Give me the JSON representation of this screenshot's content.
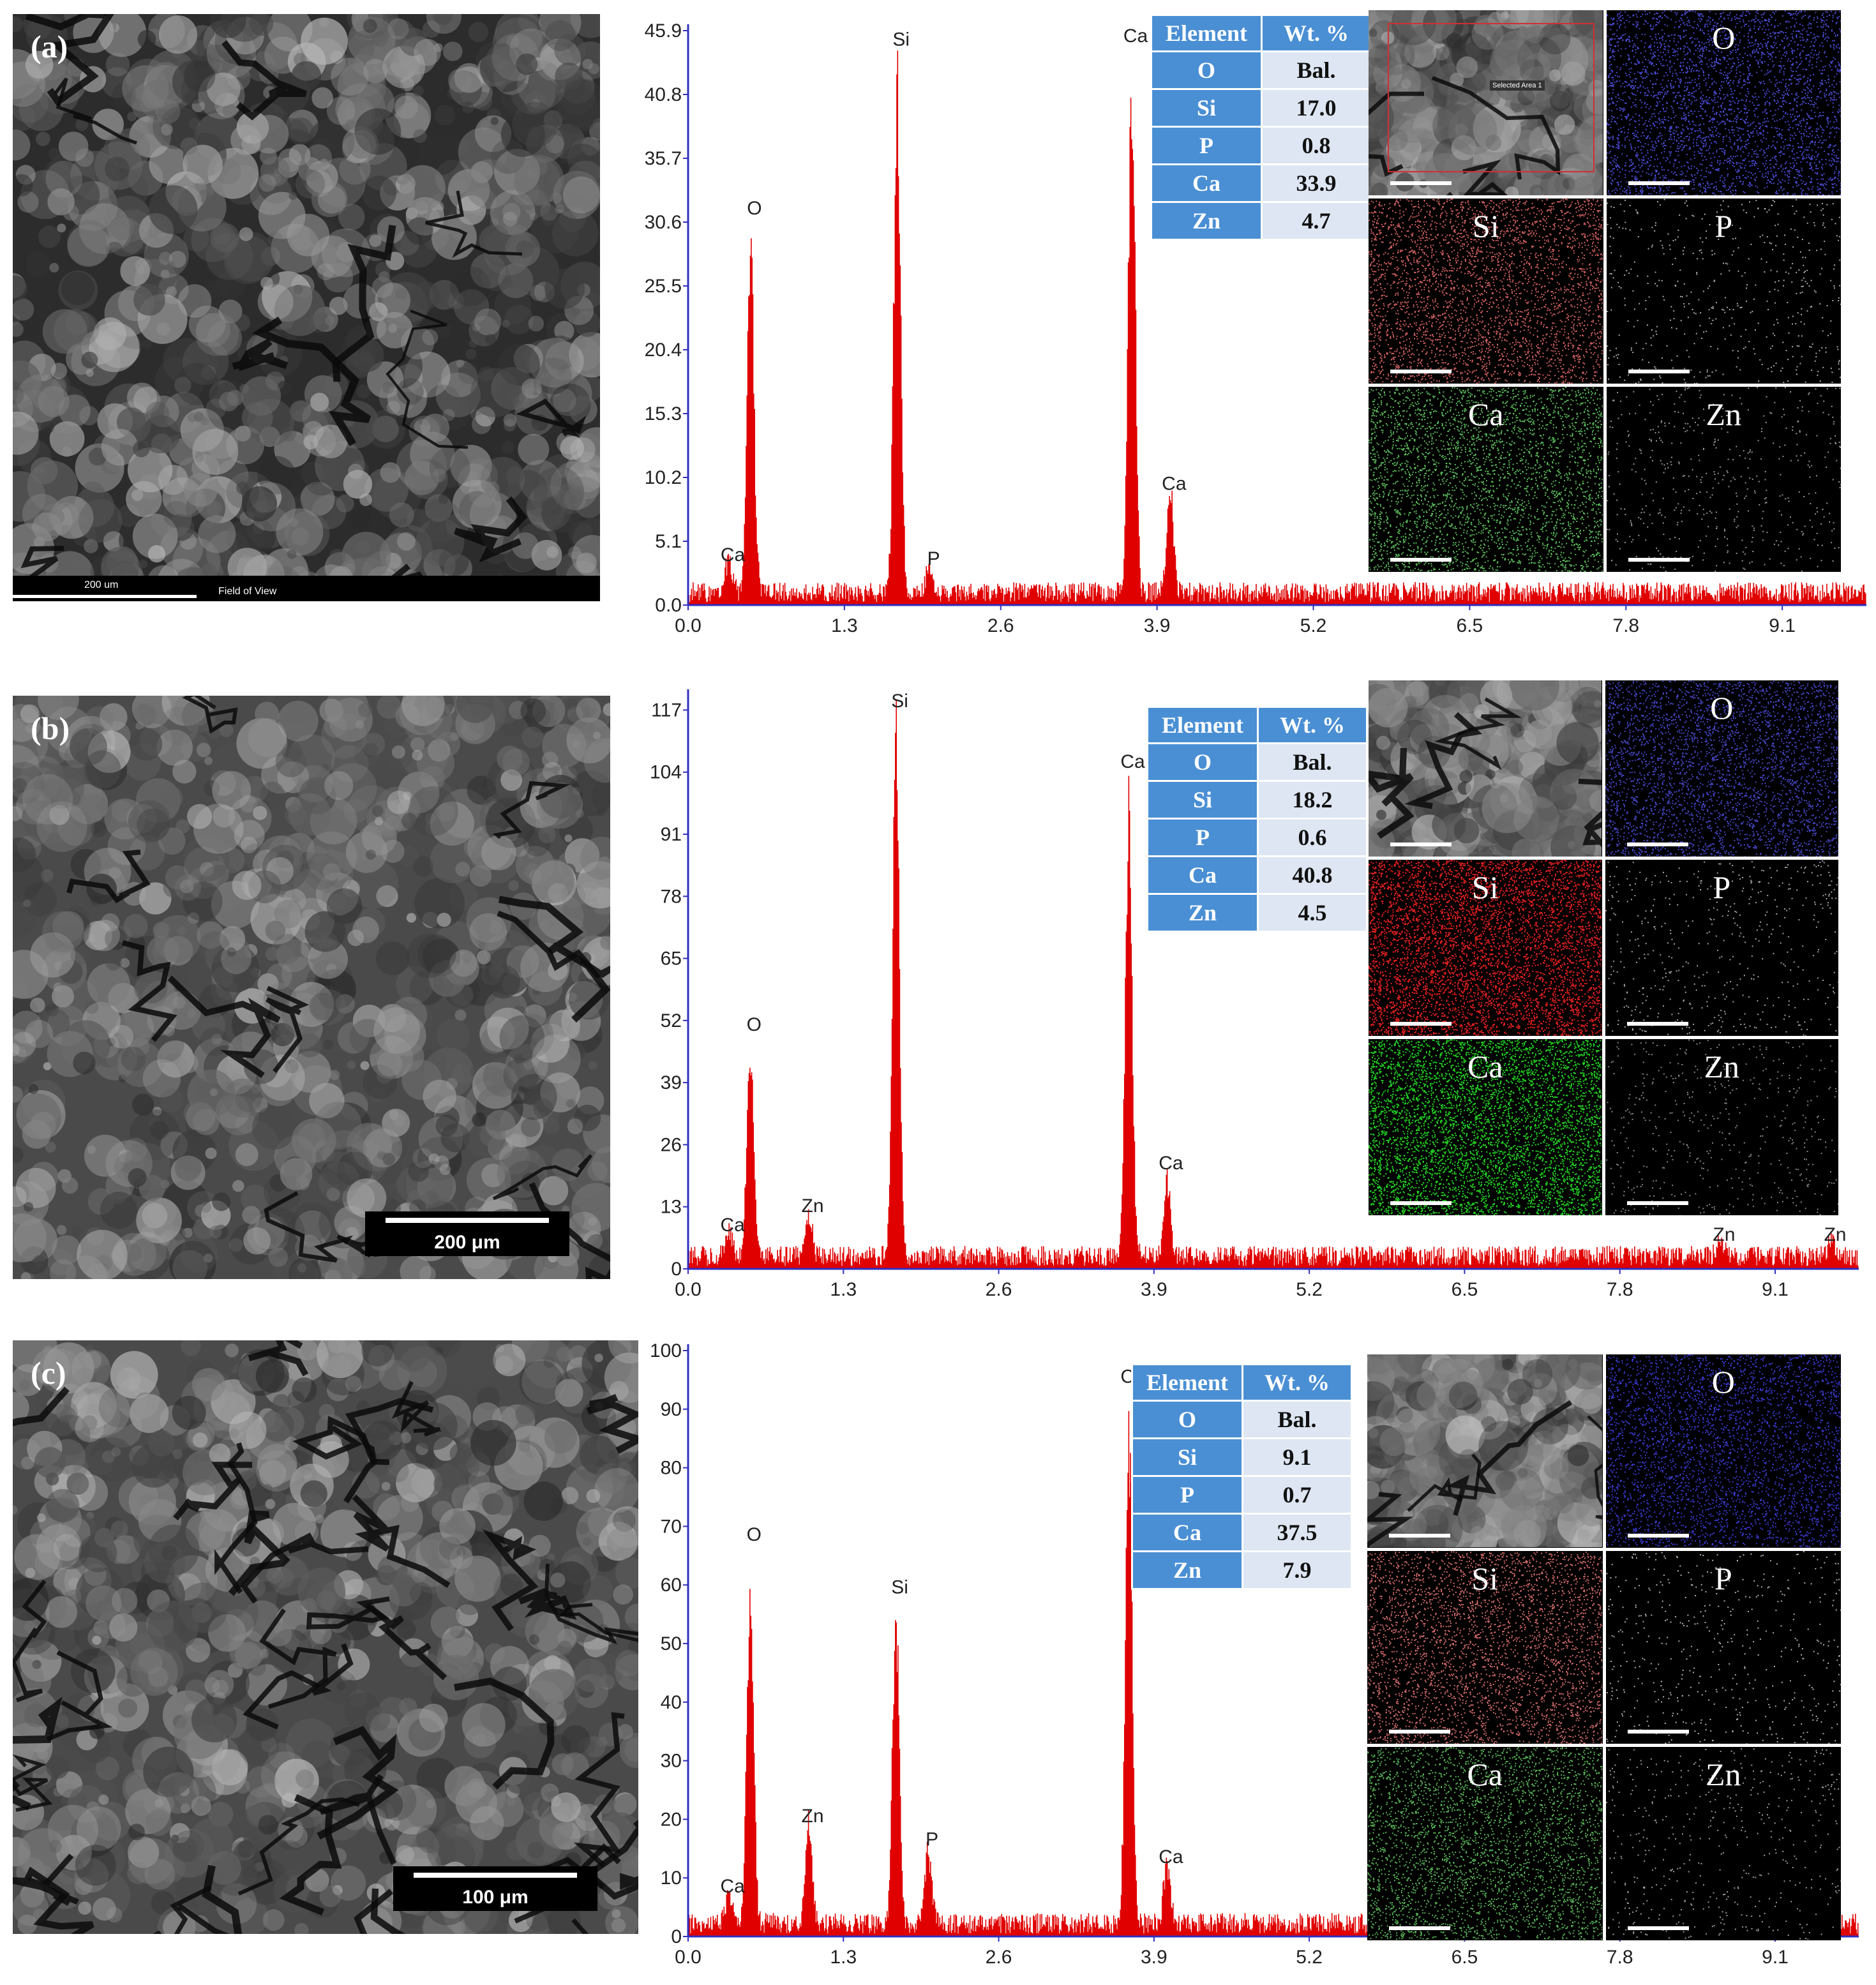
{
  "panels": [
    {
      "id": "a",
      "label": "(a)",
      "scale_text": "200 um",
      "fov_text": "Field of View",
      "scale_style": "strip",
      "table": {
        "headers": [
          "Element",
          "Wt. %"
        ],
        "rows": [
          [
            "O",
            "Bal."
          ],
          [
            "Si",
            "17.0"
          ],
          [
            "P",
            "0.8"
          ],
          [
            "Ca",
            "33.9"
          ],
          [
            "Zn",
            "4.7"
          ]
        ]
      },
      "maps": [
        {
          "name": "sem",
          "label": "",
          "color": "",
          "selected_area_text": "Selected Area 1"
        },
        {
          "name": "O",
          "label": "O",
          "color": "#4b4bd6"
        },
        {
          "name": "Si",
          "label": "Si",
          "color": "#d06060"
        },
        {
          "name": "P",
          "label": "P",
          "color": "#b0b0b0"
        },
        {
          "name": "Ca",
          "label": "Ca",
          "color": "#5cbc5c"
        },
        {
          "name": "Zn",
          "label": "Zn",
          "color": "#9a9a9a"
        }
      ]
    },
    {
      "id": "b",
      "label": "(b)",
      "scale_text": "200 μm",
      "fov_text": "",
      "scale_style": "box",
      "table": {
        "headers": [
          "Element",
          "Wt. %"
        ],
        "rows": [
          [
            "O",
            "Bal."
          ],
          [
            "Si",
            "18.2"
          ],
          [
            "P",
            "0.6"
          ],
          [
            "Ca",
            "40.8"
          ],
          [
            "Zn",
            "4.5"
          ]
        ]
      },
      "maps": [
        {
          "name": "sem",
          "label": "",
          "color": ""
        },
        {
          "name": "O",
          "label": "O",
          "color": "#4646c8"
        },
        {
          "name": "Si",
          "label": "Si",
          "color": "#e02020"
        },
        {
          "name": "P",
          "label": "P",
          "color": "#a8a8a8"
        },
        {
          "name": "Ca",
          "label": "Ca",
          "color": "#22cc22"
        },
        {
          "name": "Zn",
          "label": "Zn",
          "color": "#8a8a8a"
        }
      ]
    },
    {
      "id": "c",
      "label": "(c)",
      "scale_text": "100 μm",
      "fov_text": "",
      "scale_style": "box",
      "table": {
        "headers": [
          "Element",
          "Wt. %"
        ],
        "rows": [
          [
            "O",
            "Bal."
          ],
          [
            "Si",
            "9.1"
          ],
          [
            "P",
            "0.7"
          ],
          [
            "Ca",
            "37.5"
          ],
          [
            "Zn",
            "7.9"
          ]
        ]
      },
      "maps": [
        {
          "name": "sem",
          "label": "",
          "color": ""
        },
        {
          "name": "O",
          "label": "O",
          "color": "#3a3ad0"
        },
        {
          "name": "Si",
          "label": "Si",
          "color": "#d06a6a"
        },
        {
          "name": "P",
          "label": "P",
          "color": "#b4b4b4"
        },
        {
          "name": "Ca",
          "label": "Ca",
          "color": "#58b458"
        },
        {
          "name": "Zn",
          "label": "Zn",
          "color": "#a0a0a0"
        }
      ]
    }
  ],
  "chart_data": [
    {
      "type": "line",
      "panel": "a",
      "xlim": [
        0,
        9.8
      ],
      "ylim": [
        0,
        45.9
      ],
      "x_ticks": [
        "0.0",
        "1.3",
        "2.6",
        "3.9",
        "5.2",
        "6.5",
        "7.8",
        "9.1"
      ],
      "y_ticks": [
        "0.0",
        "5.1",
        "10.2",
        "15.3",
        "20.4",
        "25.5",
        "30.6",
        "35.7",
        "40.8",
        "45.9"
      ],
      "color": "#e00000",
      "peaks": [
        {
          "label": "Ca",
          "x": 0.34,
          "y": 2.8
        },
        {
          "label": "O",
          "x": 0.52,
          "y": 30.5
        },
        {
          "label": "Si",
          "x": 1.74,
          "y": 44.0
        },
        {
          "label": "P",
          "x": 2.01,
          "y": 2.5
        },
        {
          "label": "Ca",
          "x": 3.69,
          "y": 45.5
        },
        {
          "label": "Ca",
          "x": 4.01,
          "y": 8.5
        }
      ]
    },
    {
      "type": "line",
      "panel": "b",
      "xlim": [
        0,
        9.8
      ],
      "ylim": [
        0,
        120
      ],
      "x_ticks": [
        "0.0",
        "1.3",
        "2.6",
        "3.9",
        "5.2",
        "6.5",
        "7.8",
        "9.1"
      ],
      "y_ticks": [
        "0",
        "13",
        "26",
        "39",
        "52",
        "65",
        "78",
        "91",
        "104",
        "117"
      ],
      "color": "#e00000",
      "peaks": [
        {
          "label": "Ca",
          "x": 0.34,
          "y": 6
        },
        {
          "label": "O",
          "x": 0.52,
          "y": 48
        },
        {
          "label": "Zn",
          "x": 1.01,
          "y": 10
        },
        {
          "label": "Si",
          "x": 1.74,
          "y": 117
        },
        {
          "label": "Ca",
          "x": 3.69,
          "y": 103
        },
        {
          "label": "Ca",
          "x": 4.01,
          "y": 19
        },
        {
          "label": "Zn",
          "x": 8.64,
          "y": 4
        },
        {
          "label": "Zn",
          "x": 9.57,
          "y": 4
        }
      ]
    },
    {
      "type": "line",
      "panel": "c",
      "xlim": [
        0,
        9.8
      ],
      "ylim": [
        0,
        100
      ],
      "x_ticks": [
        "0.0",
        "1.3",
        "2.6",
        "3.9",
        "5.2",
        "6.5",
        "7.8",
        "9.1"
      ],
      "y_ticks": [
        "0",
        "10",
        "20",
        "30",
        "40",
        "50",
        "60",
        "70",
        "80",
        "90",
        "100"
      ],
      "color": "#e00000",
      "peaks": [
        {
          "label": "Ca",
          "x": 0.34,
          "y": 6
        },
        {
          "label": "O",
          "x": 0.52,
          "y": 66
        },
        {
          "label": "Zn",
          "x": 1.01,
          "y": 18
        },
        {
          "label": "Si",
          "x": 1.74,
          "y": 57
        },
        {
          "label": "P",
          "x": 2.01,
          "y": 14
        },
        {
          "label": "Ca",
          "x": 3.69,
          "y": 93
        },
        {
          "label": "Ca",
          "x": 4.01,
          "y": 11
        }
      ]
    }
  ]
}
